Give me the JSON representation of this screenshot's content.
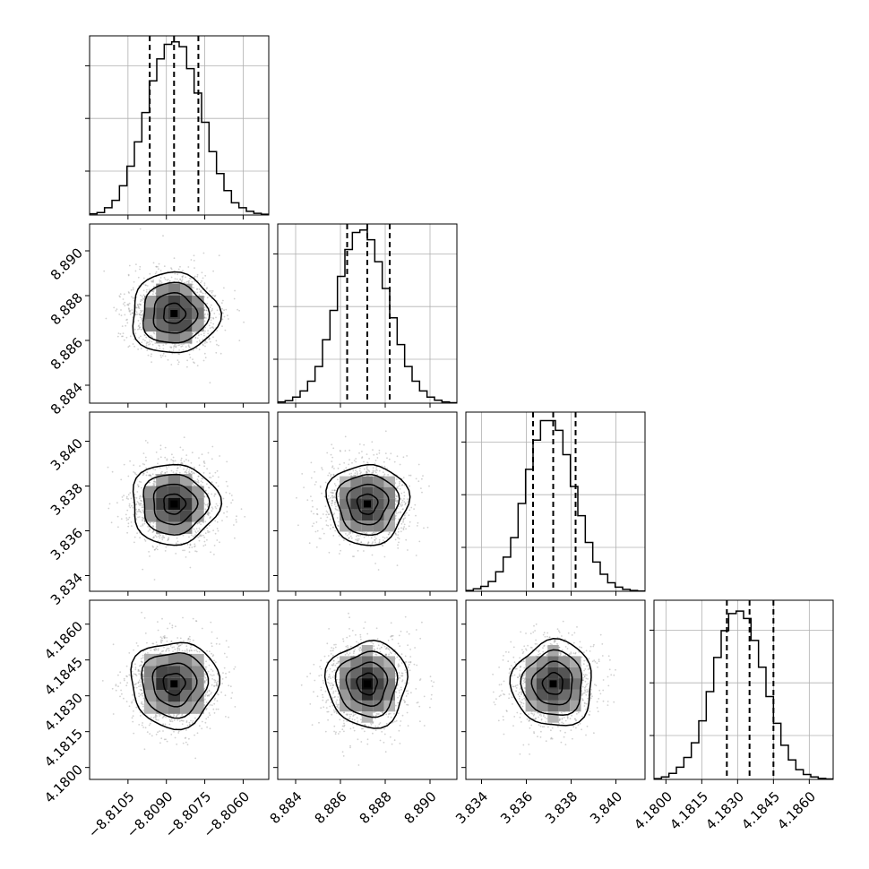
{
  "chart_data": {
    "type": "corner",
    "params": [
      {
        "hist": [
          0.5,
          1,
          3,
          6,
          12,
          20,
          30,
          42,
          55,
          64,
          70,
          71,
          69,
          60,
          50,
          38,
          26,
          17,
          10,
          5,
          3,
          1.5,
          0.7,
          0.3
        ],
        "hist_max": 72,
        "quantiles": [
          -8.80965,
          -8.8087,
          -8.80775
        ],
        "range": [
          -8.812,
          -8.805
        ],
        "ticks": [
          -8.8105,
          -8.809,
          -8.8075,
          -8.806
        ],
        "tick_labels": [
          "−8.8105",
          "−8.8090",
          "−8.8075",
          "−8.8060"
        ],
        "mean": -8.8087,
        "sd": 0.00085
      },
      {
        "hist": [
          0.5,
          1,
          2.5,
          5,
          9,
          15,
          26,
          38,
          52,
          63,
          70,
          71,
          67,
          58,
          47,
          35,
          24,
          15,
          9,
          5,
          2.5,
          1.2,
          0.5,
          0.2
        ],
        "hist_max": 72,
        "quantiles": [
          8.8863,
          8.8872,
          8.8882
        ],
        "range": [
          8.8832,
          8.8912
        ],
        "ticks": [
          8.884,
          8.886,
          8.888,
          8.89
        ],
        "tick_labels": [
          "8.884",
          "8.886",
          "8.888",
          "8.890"
        ],
        "mean": 8.8872,
        "sd": 0.0009
      },
      {
        "hist": [
          0.3,
          1,
          2,
          4,
          8,
          14,
          22,
          36,
          50,
          62,
          70,
          70,
          66,
          56,
          43,
          31,
          20,
          12,
          7,
          3.5,
          1.7,
          0.8,
          0.3,
          0.1
        ],
        "hist_max": 72,
        "quantiles": [
          3.8363,
          3.8372,
          3.8382
        ],
        "range": [
          3.8333,
          3.8413
        ],
        "ticks": [
          3.834,
          3.836,
          3.838,
          3.84
        ],
        "tick_labels": [
          "3.834",
          "3.836",
          "3.838",
          "3.840"
        ],
        "mean": 3.8372,
        "sd": 0.0009
      },
      {
        "hist": [
          0.3,
          1,
          2.5,
          5,
          9,
          15,
          24,
          36,
          50,
          61,
          68,
          69,
          66,
          57,
          46,
          34,
          23,
          14,
          8,
          4,
          2,
          1,
          0.4,
          0.2
        ],
        "hist_max": 72,
        "quantiles": [
          4.18255,
          4.1835,
          4.1845
        ],
        "range": [
          4.1795,
          4.187
        ],
        "ticks": [
          4.18,
          4.1815,
          4.183,
          4.1845,
          4.186
        ],
        "tick_labels": [
          "4.1800",
          "4.1815",
          "4.1830",
          "4.1845",
          "4.1860"
        ],
        "mean": 4.1835,
        "sd": 0.0009
      }
    ],
    "contour_levels_sigma": [
      0.5,
      1.0,
      1.5,
      2.0
    ],
    "grid": true
  }
}
